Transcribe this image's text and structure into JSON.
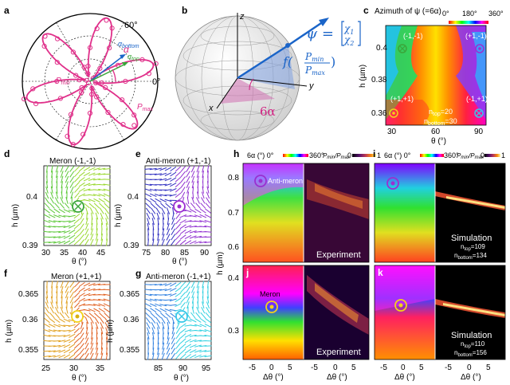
{
  "panels": {
    "a": {
      "letter": "a",
      "deg60": "60°",
      "deg0": "0°",
      "alpha": "α",
      "a_bottom": "α",
      "a_bottom_sub": "bottom",
      "a_top": "α",
      "a_top_sub": "top",
      "pmin": "P",
      "pmin_sub": "min",
      "pmax": "P",
      "pmax_sub": "max"
    },
    "b": {
      "letter": "b",
      "z": "z",
      "x": "x",
      "y": "y",
      "psi_eq": "ψ =",
      "chi1": "χ",
      "chi1_sub": "1",
      "chi2": "χ",
      "chi2_sub": "2",
      "f_label": "f(",
      "f_num": "P",
      "f_num_sub": "min",
      "f_den": "P",
      "f_den_sub": "max",
      "f_close": ")",
      "six_alpha": "6α"
    },
    "c": {
      "letter": "c",
      "title": "Azimuth of ψ (=6α)",
      "cb_0": "0°",
      "cb_180": "180°",
      "cb_360": "360°",
      "m1": "(-1,-1)",
      "m2": "(+1,-1)",
      "m3": "(+1,+1)",
      "m4": "(-1,+1)",
      "ntop": "n",
      "ntop_sub": "top",
      "ntop_val": "=20",
      "nbot": "n",
      "nbot_sub": "bottom",
      "nbot_val": "=30",
      "ylabel": "h (µm)",
      "xlabel": "θ (°)",
      "yticks": [
        "0.4",
        "0.38",
        "0.36"
      ],
      "xticks": [
        "30",
        "60",
        "90"
      ]
    },
    "d": {
      "letter": "d",
      "title": "Meron (-1,-1)",
      "ylabel": "h (µm)",
      "xlabel": "θ (°)",
      "yticks": [
        "0.4",
        "0.39"
      ],
      "xticks": [
        "30",
        "35",
        "40",
        "45"
      ]
    },
    "e": {
      "letter": "e",
      "title": "Anti-meron (+1,-1)",
      "ylabel": "h (µm)",
      "xlabel": "θ (°)",
      "yticks": [
        "0.4",
        "0.39"
      ],
      "xticks": [
        "75",
        "80",
        "85",
        "90"
      ]
    },
    "f": {
      "letter": "f",
      "title": "Meron (+1,+1)",
      "ylabel": "h (µm)",
      "xlabel": "θ (°)",
      "yticks": [
        "0.365",
        "0.36",
        "0.355"
      ],
      "xticks": [
        "25",
        "30",
        "35"
      ]
    },
    "g": {
      "letter": "g",
      "title": "Anti-meron (-1,+1)",
      "ylabel": "h (µm)",
      "xlabel": "θ (°)",
      "yticks": [
        "0.365",
        "0.36",
        "0.355"
      ],
      "xticks": [
        "85",
        "90",
        "95"
      ]
    },
    "h": {
      "letter": "h",
      "cb_left": "6α (°) 0°",
      "cb_mid": "360°",
      "cb_pm": "P",
      "cb_pm_sub": "min",
      "cb_slash": "/P",
      "cb_pm2_sub": "max",
      "cb_0": "0",
      "cb_1": "1",
      "antimeron": "Anti-meron",
      "experiment": "Experiment",
      "yticks": [
        "0.8",
        "0.7",
        "0.6"
      ]
    },
    "i": {
      "letter": "i",
      "cb_left": "6α (°) 0°",
      "cb_mid": "360°",
      "cb_pm": "P",
      "cb_pm_sub": "min",
      "cb_slash": "/P",
      "cb_pm2_sub": "max",
      "cb_0": "0",
      "cb_1": "1",
      "sim": "Simulation",
      "ntop_val": "=109",
      "nbot_val": "=134"
    },
    "j": {
      "letter": "j",
      "meron": "Meron",
      "experiment": "Experiment",
      "yticks": [
        "0.4",
        "0.3"
      ],
      "xticks": [
        "-5",
        "0",
        "5"
      ],
      "xlabel": "Δθ (°)",
      "ylabel": "h (µm)"
    },
    "k": {
      "letter": "k",
      "sim": "Simulation",
      "ntop_val": "=110",
      "nbot_val": "=156",
      "xticks": [
        "-5",
        "0",
        "5"
      ],
      "xlabel": "Δθ (°)"
    }
  },
  "colors": {
    "pink": "#e0308a",
    "blue": "#1a64c8",
    "green": "#3aa63a",
    "purple": "#9b2fd0",
    "yellow": "#f2d21a",
    "cyan": "#38c8e8"
  }
}
